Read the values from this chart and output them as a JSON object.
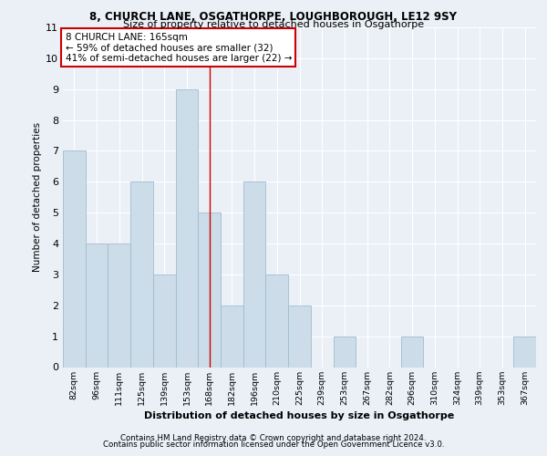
{
  "title1": "8, CHURCH LANE, OSGATHORPE, LOUGHBOROUGH, LE12 9SY",
  "title2": "Size of property relative to detached houses in Osgathorpe",
  "xlabel": "Distribution of detached houses by size in Osgathorpe",
  "ylabel": "Number of detached properties",
  "categories": [
    "82sqm",
    "96sqm",
    "111sqm",
    "125sqm",
    "139sqm",
    "153sqm",
    "168sqm",
    "182sqm",
    "196sqm",
    "210sqm",
    "225sqm",
    "239sqm",
    "253sqm",
    "267sqm",
    "282sqm",
    "296sqm",
    "310sqm",
    "324sqm",
    "339sqm",
    "353sqm",
    "367sqm"
  ],
  "values": [
    7,
    4,
    4,
    6,
    3,
    9,
    5,
    2,
    6,
    3,
    2,
    0,
    1,
    0,
    0,
    1,
    0,
    0,
    0,
    0,
    1
  ],
  "bar_color": "#ccdce8",
  "bar_edge_color": "#a0bdd0",
  "highlight_index": 6,
  "highlight_line_color": "#cc0000",
  "ylim": [
    0,
    11
  ],
  "yticks": [
    0,
    1,
    2,
    3,
    4,
    5,
    6,
    7,
    8,
    9,
    10,
    11
  ],
  "annotation_box_text": "8 CHURCH LANE: 165sqm\n← 59% of detached houses are smaller (32)\n41% of semi-detached houses are larger (22) →",
  "annotation_box_color": "#cc0000",
  "footer1": "Contains HM Land Registry data © Crown copyright and database right 2024.",
  "footer2": "Contains public sector information licensed under the Open Government Licence v3.0.",
  "background_color": "#eaf0f6",
  "grid_color": "#ffffff"
}
